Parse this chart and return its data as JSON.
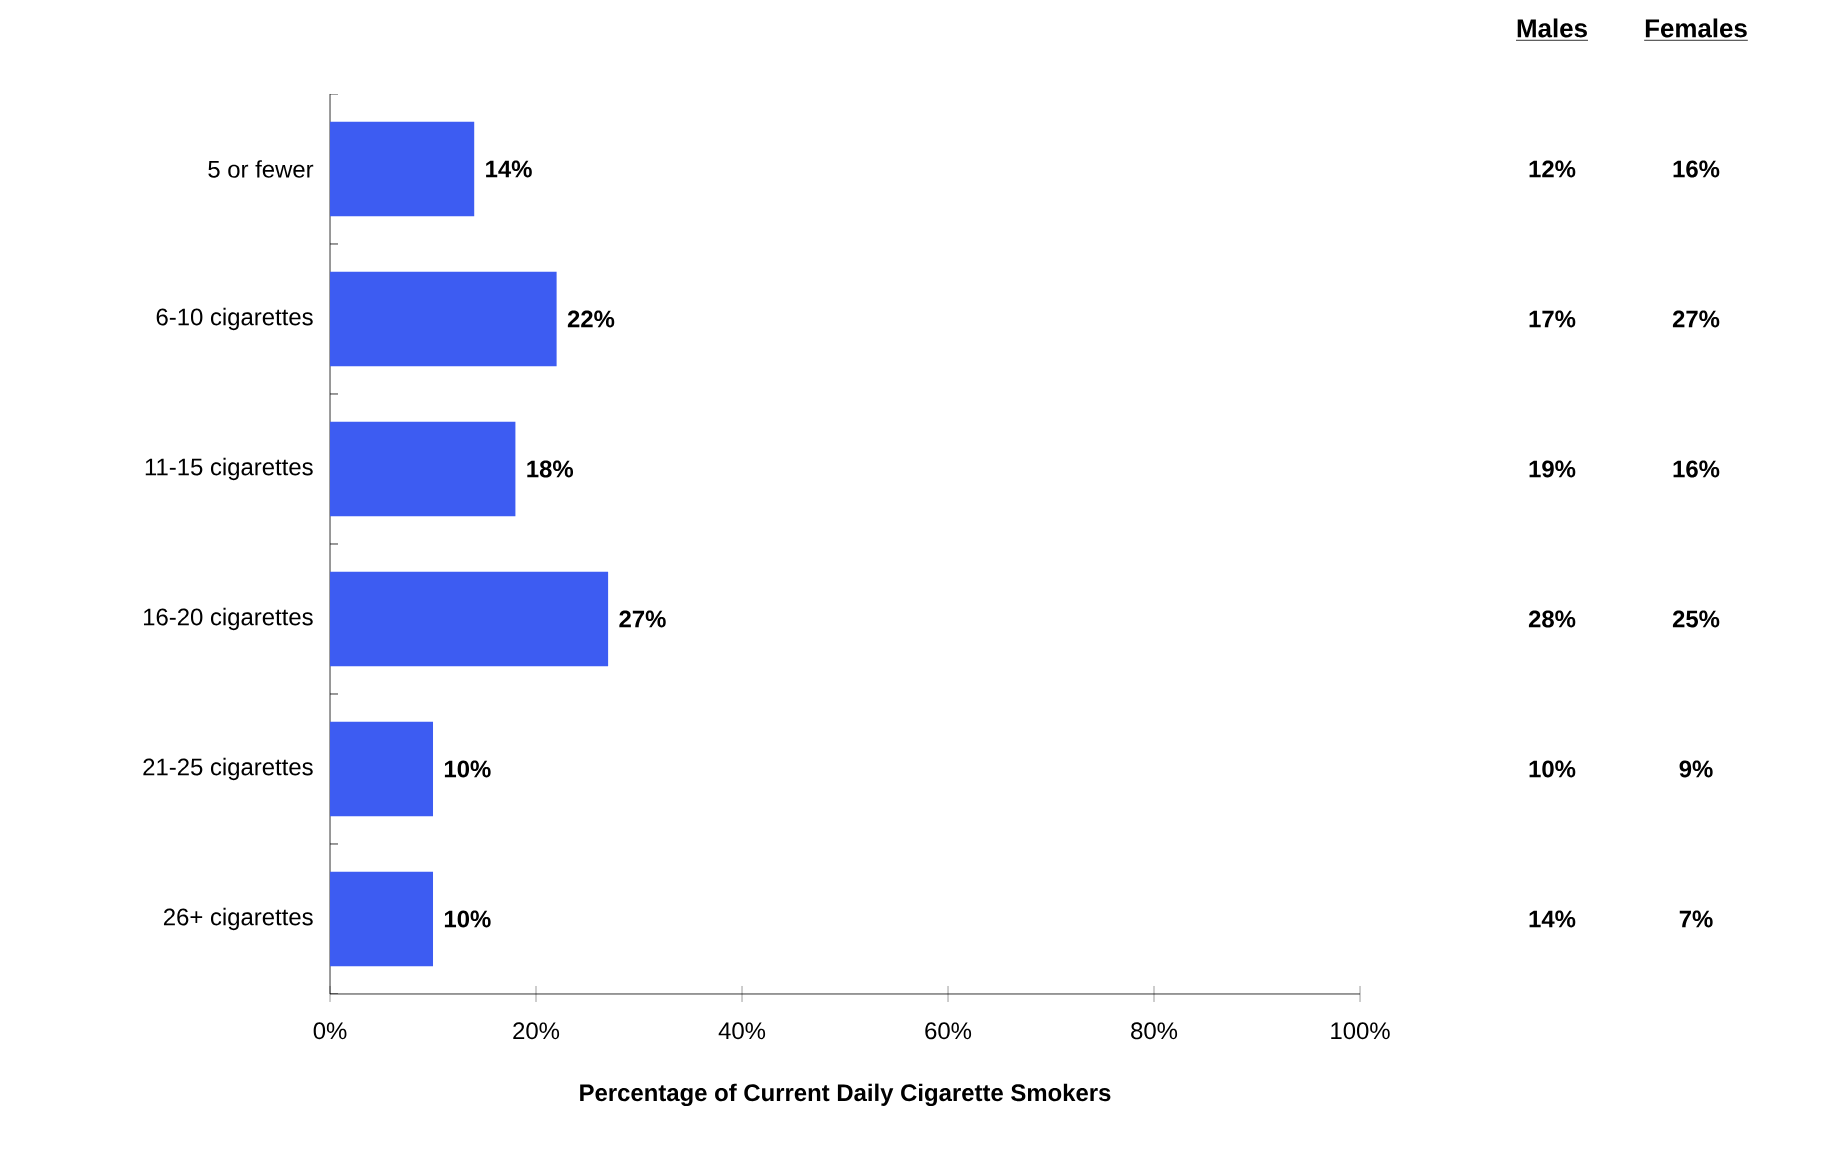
{
  "chart_data": [
    {
      "type": "bar",
      "orientation": "horizontal",
      "xlabel": "Percentage of Current Daily Cigarette Smokers",
      "categories": [
        "5 or fewer",
        "6-10 cigarettes",
        "11-15 cigarettes",
        "16-20 cigarettes",
        "21-25 cigarettes",
        "26+ cigarettes"
      ],
      "values": [
        14,
        22,
        18,
        27,
        10,
        10
      ],
      "value_labels": [
        "14%",
        "22%",
        "18%",
        "27%",
        "10%",
        "10%"
      ],
      "color": "#3d5cf2",
      "xlim": [
        0,
        100
      ],
      "xticks": [
        {
          "value": 0,
          "label": "0%"
        },
        {
          "value": 20,
          "label": "20%"
        },
        {
          "value": 40,
          "label": "40%"
        },
        {
          "value": 60,
          "label": "60%"
        },
        {
          "value": 80,
          "label": "80%"
        },
        {
          "value": 100,
          "label": "100%"
        }
      ],
      "grid": false
    },
    {
      "type": "other",
      "annotations": [
        "Males",
        "Females",
        "12%",
        "16%",
        "17%",
        "27%",
        "19%",
        "16%",
        "28%",
        "25%",
        "10%",
        "9%",
        "14%",
        "7%"
      ]
    }
  ]
}
